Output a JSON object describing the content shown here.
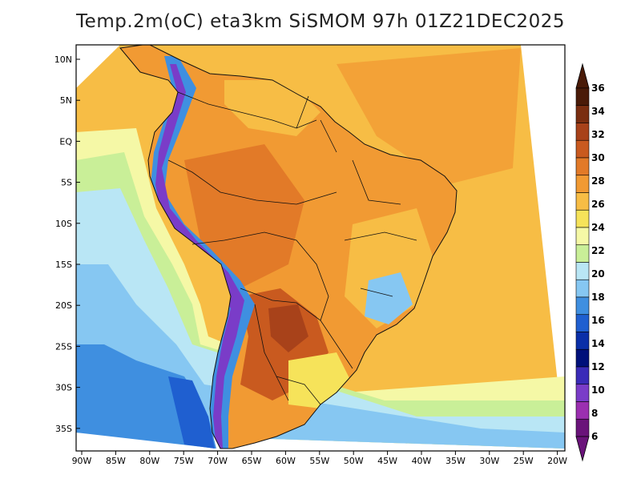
{
  "title": "Temp.2m(oC) eta3km SiSMOM 97h 01Z21DEC2025",
  "lat_labels": [
    "10N",
    "5N",
    "EQ",
    "5S",
    "10S",
    "15S",
    "20S",
    "25S",
    "30S",
    "35S"
  ],
  "lon_labels": [
    "90W",
    "85W",
    "80W",
    "75W",
    "70W",
    "65W",
    "60W",
    "55W",
    "50W",
    "45W",
    "40W",
    "35W",
    "30W",
    "25W",
    "20W"
  ],
  "colorbar": {
    "labels": [
      "36",
      "34",
      "32",
      "30",
      "28",
      "26",
      "24",
      "22",
      "20",
      "18",
      "16",
      "14",
      "12",
      "10",
      "8",
      "6"
    ],
    "colors": [
      "#4a1b08",
      "#7a2e10",
      "#a8421a",
      "#c95a1f",
      "#e27a28",
      "#f19a33",
      "#f7bd45",
      "#f6e35a",
      "#f5f8a6",
      "#c9ef98",
      "#b9e6f5",
      "#86c7f2",
      "#3f8fe0",
      "#1f5fd0",
      "#0a2fa8",
      "#00107a",
      "#3a2bb8",
      "#7a3cc8",
      "#9b2fb0",
      "#6a137a"
    ],
    "units": "oC"
  }
}
